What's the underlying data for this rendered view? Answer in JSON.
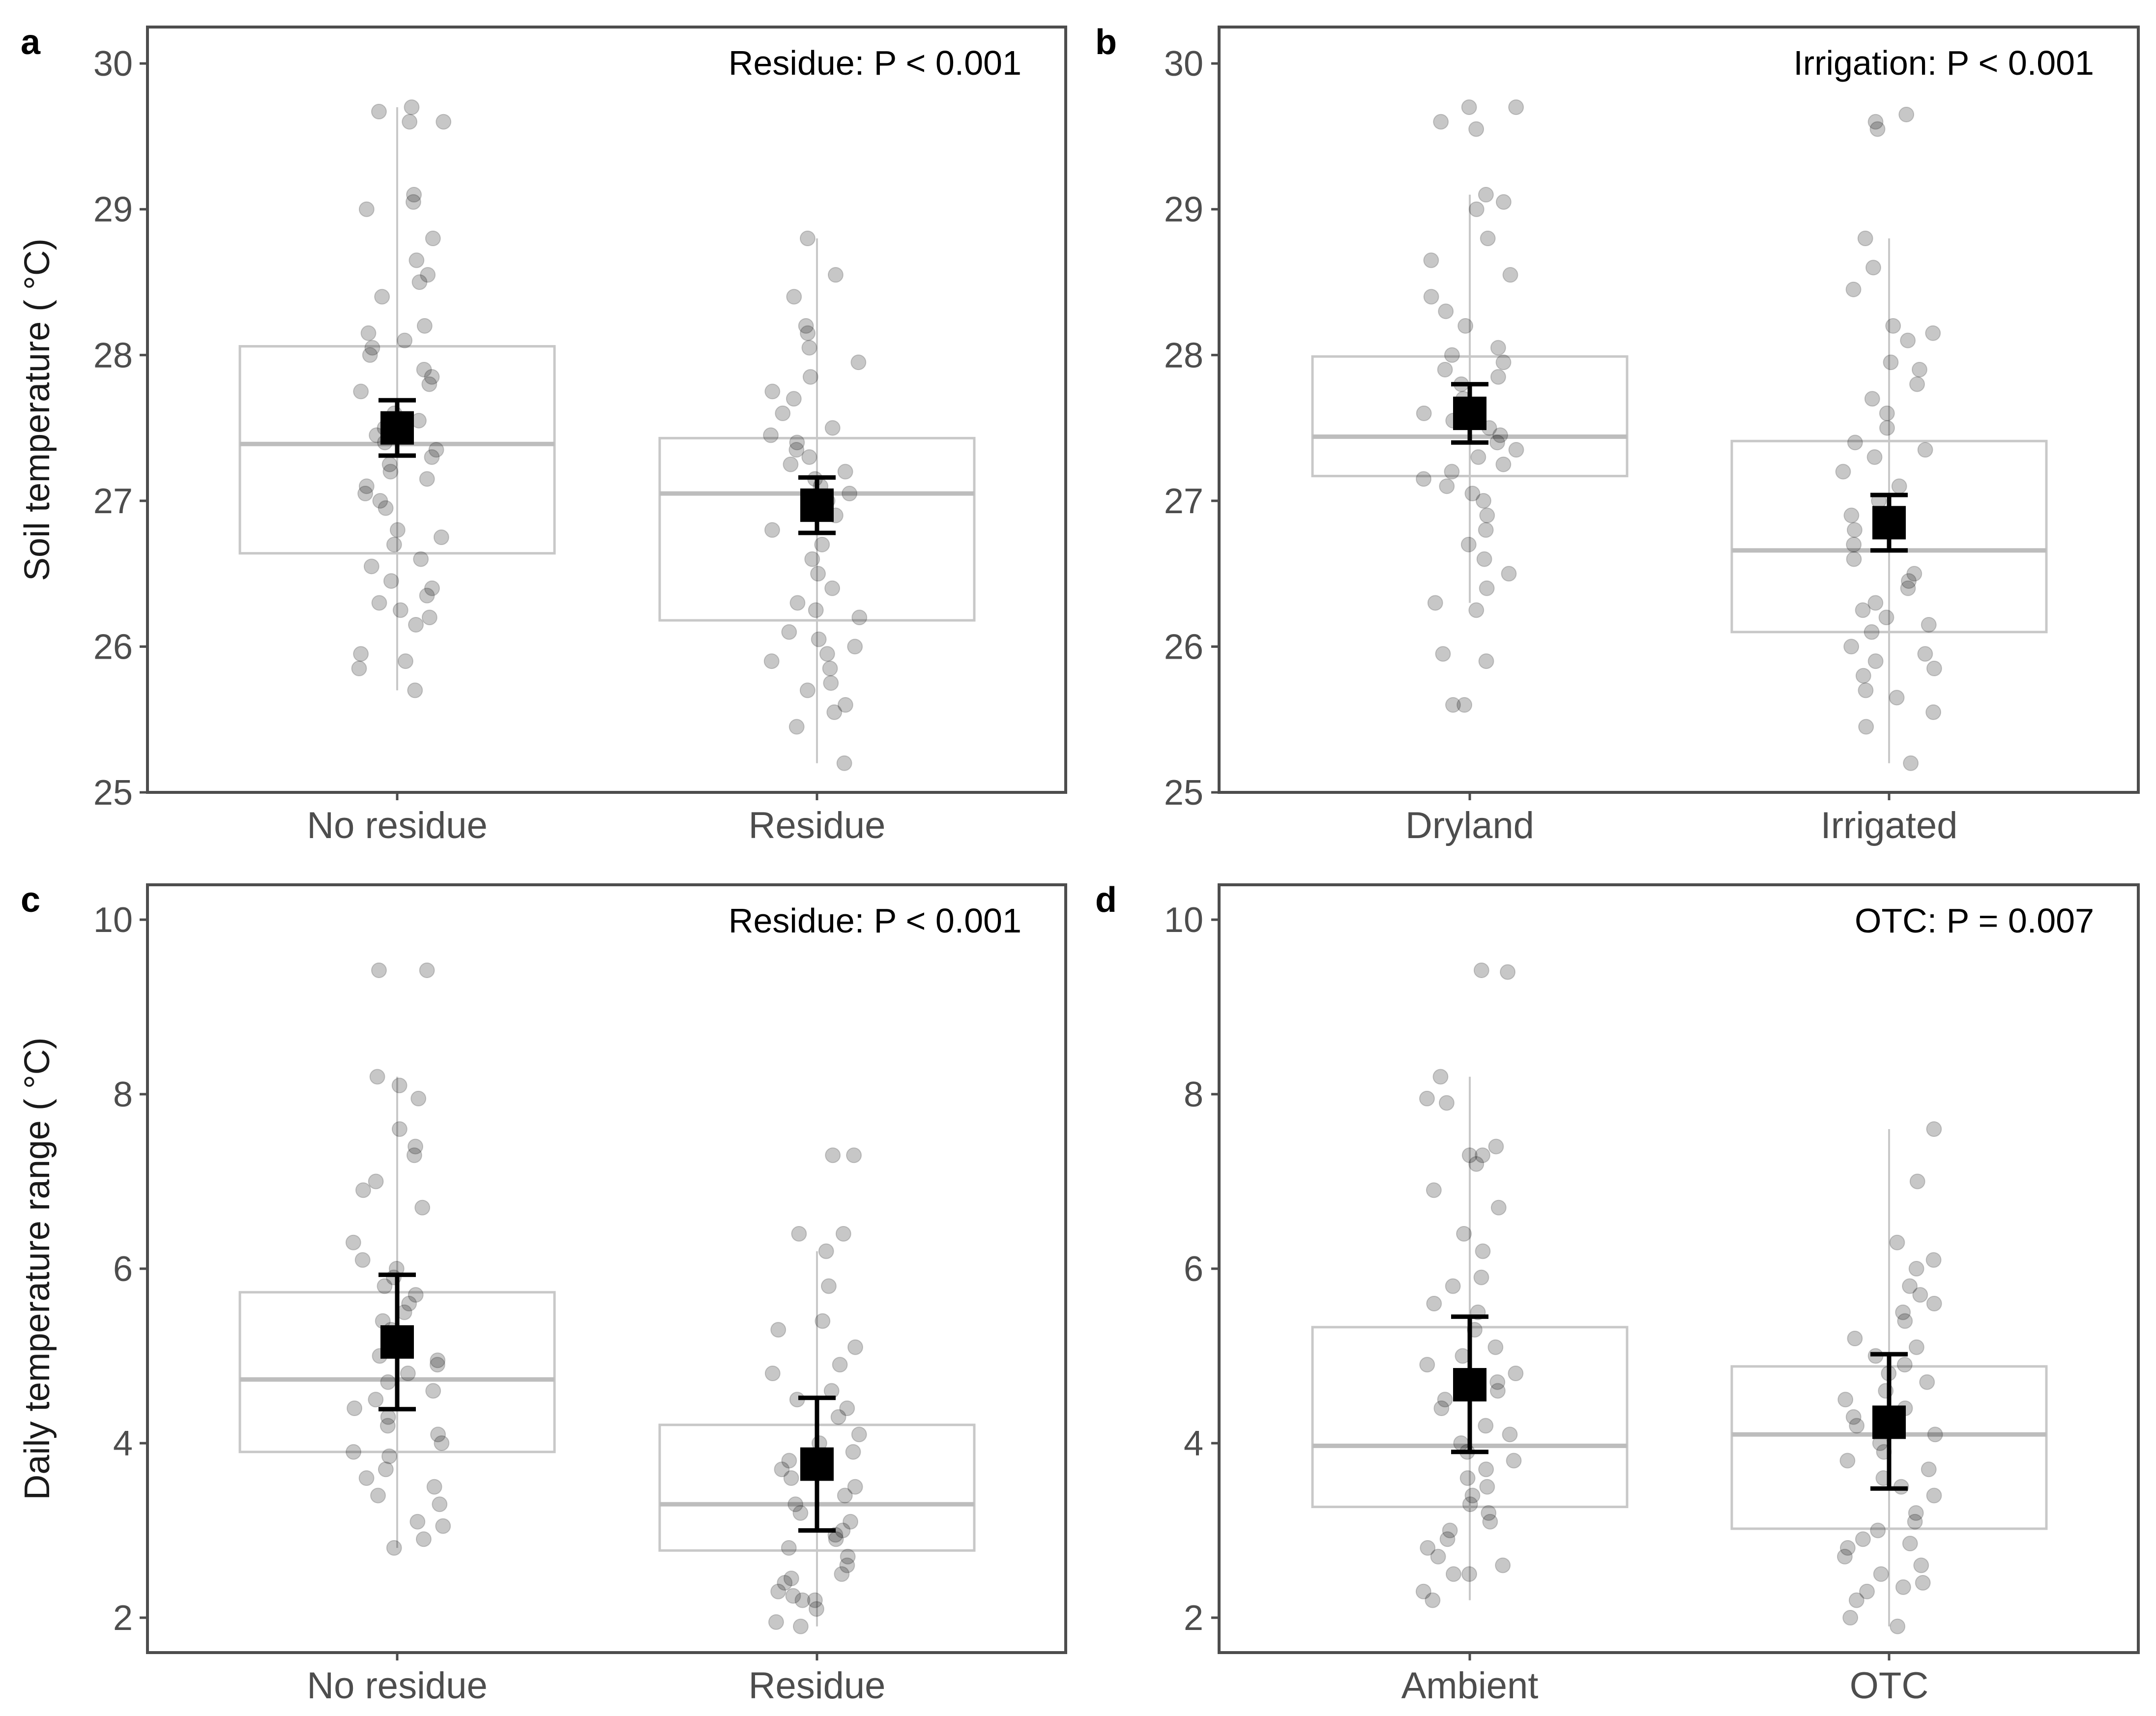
{
  "colors": {
    "frame": "#4d4d4d",
    "box": "#c8c8c8",
    "median": "#bdbdbd",
    "whisker": "#c8c8c8",
    "point_fill": "#000000",
    "point_alpha": 0.22,
    "mean": "#000000"
  },
  "chart_data": [
    {
      "type": "box",
      "panel": "a",
      "annotation": "Residue: P < 0.001",
      "ylabel": "Soil temperature ( °C)",
      "ylim": [
        25,
        30.25
      ],
      "yticks": [
        25,
        26,
        27,
        28,
        29,
        30
      ],
      "categories": [
        "No residue",
        "Residue"
      ],
      "boxes": [
        {
          "q1": 26.64,
          "median": 27.39,
          "q3": 28.06,
          "whisker_low": 25.7,
          "whisker_high": 29.7,
          "mean": 27.5,
          "err_low": 27.31,
          "err_high": 27.69
        },
        {
          "q1": 26.18,
          "median": 27.05,
          "q3": 27.43,
          "whisker_low": 25.2,
          "whisker_high": 28.8,
          "mean": 26.97,
          "err_low": 26.78,
          "err_high": 27.16
        }
      ],
      "points": [
        [
          29.7,
          29.67,
          29.6,
          29.6,
          29.1,
          29.05,
          29.0,
          28.8,
          28.65,
          28.55,
          28.5,
          28.4,
          28.2,
          28.15,
          28.1,
          28.05,
          28.0,
          27.9,
          27.85,
          27.8,
          27.75,
          27.6,
          27.55,
          27.5,
          27.45,
          27.4,
          27.35,
          27.3,
          27.25,
          27.2,
          27.15,
          27.1,
          27.05,
          27.0,
          26.95,
          26.8,
          26.75,
          26.7,
          26.6,
          26.55,
          26.45,
          26.4,
          26.35,
          26.3,
          26.25,
          26.2,
          26.15,
          25.95,
          25.9,
          25.85,
          25.7
        ],
        [
          28.8,
          28.55,
          28.4,
          28.2,
          28.15,
          28.05,
          27.95,
          27.85,
          27.75,
          27.7,
          27.6,
          27.5,
          27.45,
          27.4,
          27.35,
          27.3,
          27.25,
          27.2,
          27.15,
          27.1,
          27.05,
          27.0,
          26.9,
          26.8,
          26.7,
          26.6,
          26.5,
          26.4,
          26.3,
          26.25,
          26.2,
          26.1,
          26.05,
          26.0,
          25.95,
          25.9,
          25.85,
          25.75,
          25.7,
          25.6,
          25.55,
          25.45,
          25.2
        ]
      ]
    },
    {
      "type": "box",
      "panel": "b",
      "annotation": "Irrigation: P < 0.001",
      "ylabel": "",
      "ylim": [
        25,
        30.25
      ],
      "yticks": [
        25,
        26,
        27,
        28,
        29,
        30
      ],
      "categories": [
        "Dryland",
        "Irrigated"
      ],
      "boxes": [
        {
          "q1": 27.17,
          "median": 27.44,
          "q3": 27.99,
          "whisker_low": 26.3,
          "whisker_high": 29.1,
          "mean": 27.6,
          "err_low": 27.4,
          "err_high": 27.8
        },
        {
          "q1": 26.1,
          "median": 26.66,
          "q3": 27.41,
          "whisker_low": 25.2,
          "whisker_high": 28.8,
          "mean": 26.85,
          "err_low": 26.66,
          "err_high": 27.04
        }
      ],
      "points": [
        [
          29.7,
          29.7,
          29.6,
          29.55,
          29.1,
          29.05,
          29.0,
          28.8,
          28.65,
          28.55,
          28.4,
          28.3,
          28.2,
          28.05,
          28.0,
          27.95,
          27.9,
          27.85,
          27.8,
          27.7,
          27.6,
          27.55,
          27.5,
          27.45,
          27.4,
          27.35,
          27.3,
          27.25,
          27.2,
          27.15,
          27.1,
          27.05,
          27.0,
          26.9,
          26.8,
          26.7,
          26.6,
          26.5,
          26.4,
          26.3,
          26.25,
          25.95,
          25.9,
          25.6,
          25.6
        ],
        [
          29.65,
          29.6,
          29.55,
          28.8,
          28.6,
          28.45,
          28.2,
          28.15,
          28.1,
          27.95,
          27.9,
          27.8,
          27.7,
          27.6,
          27.5,
          27.4,
          27.35,
          27.3,
          27.2,
          27.1,
          27.0,
          26.9,
          26.8,
          26.7,
          26.6,
          26.5,
          26.45,
          26.4,
          26.3,
          26.25,
          26.2,
          26.15,
          26.1,
          26.0,
          25.95,
          25.9,
          25.85,
          25.8,
          25.7,
          25.65,
          25.55,
          25.45,
          25.2
        ]
      ]
    },
    {
      "type": "box",
      "panel": "c",
      "annotation": "Residue: P < 0.001",
      "ylabel": "Daily temperature range ( °C)",
      "ylim": [
        1.6,
        10.4
      ],
      "yticks": [
        2,
        4,
        6,
        8,
        10
      ],
      "categories": [
        "No residue",
        "Residue"
      ],
      "boxes": [
        {
          "q1": 3.9,
          "median": 4.73,
          "q3": 5.73,
          "whisker_low": 2.8,
          "whisker_high": 8.2,
          "mean": 5.16,
          "err_low": 4.39,
          "err_high": 5.93
        },
        {
          "q1": 2.77,
          "median": 3.3,
          "q3": 4.21,
          "whisker_low": 1.9,
          "whisker_high": 6.2,
          "mean": 3.76,
          "err_low": 3.0,
          "err_high": 4.52
        }
      ],
      "points": [
        [
          9.42,
          9.42,
          8.2,
          8.1,
          7.95,
          7.6,
          7.4,
          7.3,
          7.0,
          6.9,
          6.7,
          6.3,
          6.1,
          6.0,
          5.9,
          5.8,
          5.7,
          5.6,
          5.5,
          5.4,
          5.3,
          5.2,
          5.1,
          5.0,
          4.95,
          4.9,
          4.8,
          4.7,
          4.6,
          4.5,
          4.4,
          4.3,
          4.2,
          4.1,
          4.0,
          3.9,
          3.85,
          3.7,
          3.6,
          3.5,
          3.4,
          3.3,
          3.1,
          3.05,
          2.9,
          2.8
        ],
        [
          7.3,
          7.3,
          6.4,
          6.4,
          6.2,
          5.8,
          5.4,
          5.3,
          5.1,
          4.9,
          4.8,
          4.6,
          4.5,
          4.4,
          4.3,
          4.1,
          4.0,
          3.9,
          3.8,
          3.7,
          3.6,
          3.5,
          3.4,
          3.3,
          3.2,
          3.1,
          3.0,
          2.95,
          2.9,
          2.8,
          2.7,
          2.6,
          2.5,
          2.45,
          2.4,
          2.3,
          2.25,
          2.2,
          2.2,
          2.1,
          1.95,
          1.9
        ]
      ]
    },
    {
      "type": "box",
      "panel": "d",
      "annotation": "OTC: P = 0.007",
      "ylabel": "",
      "ylim": [
        1.6,
        10.4
      ],
      "yticks": [
        2,
        4,
        6,
        8,
        10
      ],
      "categories": [
        "Ambient",
        "OTC"
      ],
      "boxes": [
        {
          "q1": 3.27,
          "median": 3.97,
          "q3": 5.33,
          "whisker_low": 2.2,
          "whisker_high": 8.2,
          "mean": 4.67,
          "err_low": 3.9,
          "err_high": 5.45
        },
        {
          "q1": 3.02,
          "median": 4.1,
          "q3": 4.88,
          "whisker_low": 1.9,
          "whisker_high": 7.6,
          "mean": 4.24,
          "err_low": 3.48,
          "err_high": 5.02
        }
      ],
      "points": [
        [
          9.42,
          9.4,
          8.2,
          7.95,
          7.9,
          7.4,
          7.3,
          7.3,
          7.2,
          6.9,
          6.7,
          6.4,
          6.2,
          5.9,
          5.8,
          5.6,
          5.5,
          5.3,
          5.1,
          5.0,
          4.9,
          4.8,
          4.7,
          4.6,
          4.5,
          4.4,
          4.2,
          4.1,
          4.0,
          3.9,
          3.8,
          3.7,
          3.6,
          3.5,
          3.4,
          3.3,
          3.2,
          3.1,
          3.0,
          2.9,
          2.8,
          2.7,
          2.6,
          2.5,
          2.5,
          2.3,
          2.2
        ],
        [
          7.6,
          7.0,
          6.3,
          6.1,
          6.0,
          5.8,
          5.7,
          5.6,
          5.5,
          5.4,
          5.2,
          5.1,
          5.0,
          4.9,
          4.8,
          4.7,
          4.6,
          4.5,
          4.4,
          4.3,
          4.2,
          4.1,
          4.0,
          3.9,
          3.8,
          3.7,
          3.6,
          3.5,
          3.4,
          3.2,
          3.1,
          3.0,
          2.9,
          2.85,
          2.8,
          2.7,
          2.6,
          2.5,
          2.4,
          2.35,
          2.3,
          2.2,
          2.0,
          1.9
        ]
      ]
    }
  ]
}
